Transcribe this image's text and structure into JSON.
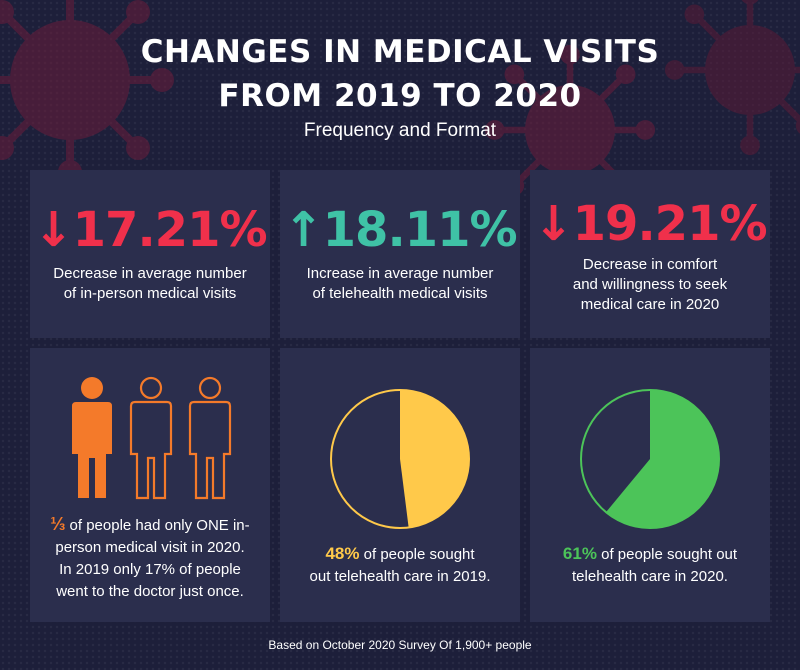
{
  "header": {
    "title_line1": "CHANGES IN MEDICAL VISITS",
    "title_line2": "FROM 2019 TO 2020",
    "subtitle": "Frequency and Format"
  },
  "stats": [
    {
      "arrow": "↓",
      "value": "17.21%",
      "color": "#f0304b",
      "line1": "Decrease in average number",
      "line2": "of in-person medical visits",
      "line3": ""
    },
    {
      "arrow": "↑",
      "value": "18.11%",
      "color": "#3fc2a6",
      "line1": "Increase in average number",
      "line2": "of telehealth medical visits",
      "line3": ""
    },
    {
      "arrow": "↓",
      "value": "19.21%",
      "color": "#f0304b",
      "line1": "Decrease in comfort",
      "line2": "and willingness to seek",
      "line3": "medical care in 2020"
    }
  ],
  "people_panel": {
    "fraction": "⅓",
    "line1": " of people had only ONE in-",
    "line2": "person medical visit in 2020.",
    "line3": "In 2019 only 17% of people",
    "line4": "went to the doctor just once.",
    "filled_people": 1,
    "total_people": 3,
    "accent": "#f47a2a"
  },
  "pies": [
    {
      "percent_label": "48%",
      "fraction": 0.48,
      "color": "#ffc94a",
      "line1": " of people sought",
      "line2": "out telehealth care in 2019."
    },
    {
      "percent_label": "61%",
      "fraction": 0.61,
      "color": "#4cc459",
      "line1": " of people sought out",
      "line2": "telehealth care in 2020."
    }
  ],
  "footer": "Based on October 2020 Survey Of 1,900+ people"
}
